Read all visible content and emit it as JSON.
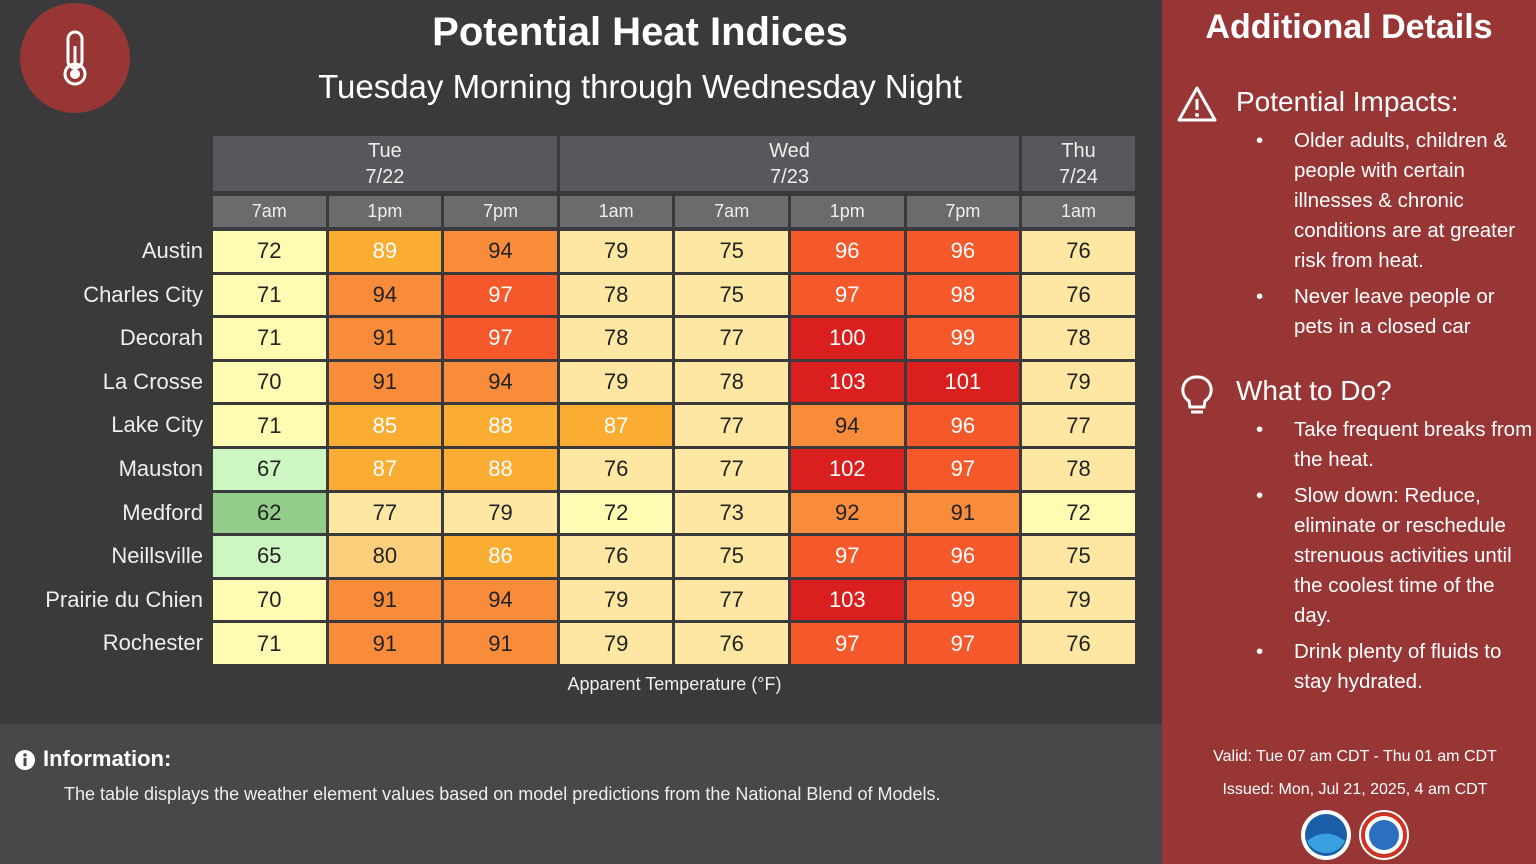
{
  "header": {
    "title": "Potential Heat Indices",
    "subtitle": "Tuesday Morning through Wednesday Night"
  },
  "table": {
    "days": [
      {
        "label": "Tue",
        "date": "7/22",
        "times": [
          "7am",
          "1pm",
          "7pm"
        ]
      },
      {
        "label": "Wed",
        "date": "7/23",
        "times": [
          "1am",
          "7am",
          "1pm",
          "7pm"
        ]
      },
      {
        "label": "Thu",
        "date": "7/24",
        "times": [
          "1am"
        ]
      }
    ],
    "rows": [
      {
        "city": "Austin",
        "values": [
          72,
          89,
          94,
          79,
          75,
          96,
          96,
          76
        ]
      },
      {
        "city": "Charles City",
        "values": [
          71,
          94,
          97,
          78,
          75,
          97,
          98,
          76
        ]
      },
      {
        "city": "Decorah",
        "values": [
          71,
          91,
          97,
          78,
          77,
          100,
          99,
          78
        ]
      },
      {
        "city": "La Crosse",
        "values": [
          70,
          91,
          94,
          79,
          78,
          103,
          101,
          79
        ]
      },
      {
        "city": "Lake City",
        "values": [
          71,
          85,
          88,
          87,
          77,
          94,
          96,
          77
        ]
      },
      {
        "city": "Mauston",
        "values": [
          67,
          87,
          88,
          76,
          77,
          102,
          97,
          78
        ]
      },
      {
        "city": "Medford",
        "values": [
          62,
          77,
          79,
          72,
          73,
          92,
          91,
          72
        ]
      },
      {
        "city": "Neillsville",
        "values": [
          65,
          80,
          86,
          76,
          75,
          97,
          96,
          75
        ]
      },
      {
        "city": "Prairie du Chien",
        "values": [
          70,
          91,
          94,
          79,
          77,
          103,
          99,
          79
        ]
      },
      {
        "city": "Rochester",
        "values": [
          71,
          91,
          91,
          79,
          76,
          97,
          97,
          76
        ]
      }
    ],
    "caption": "Apparent Temperature (°F)"
  },
  "info": {
    "title": "Information:",
    "text": "The table displays the weather element values based on model predictions from the National Blend of Models."
  },
  "sidebar": {
    "title": "Additional Details",
    "sections": [
      {
        "heading": "Potential Impacts:",
        "items": [
          "Older adults, children & people with certain illnesses & chronic conditions are at greater risk from heat.",
          "Never leave people or pets in a closed car"
        ]
      },
      {
        "heading": "What to Do?",
        "items": [
          "Take frequent breaks from the heat.",
          "Slow down: Reduce, eliminate or reschedule strenuous activities until the coolest time of the day.",
          "Drink plenty of fluids to stay hydrated."
        ]
      }
    ],
    "valid": "Valid: Tue 07 am CDT - Thu 01 am CDT",
    "issued": "Issued: Mon, Jul 21, 2025, 4 am CDT"
  }
}
